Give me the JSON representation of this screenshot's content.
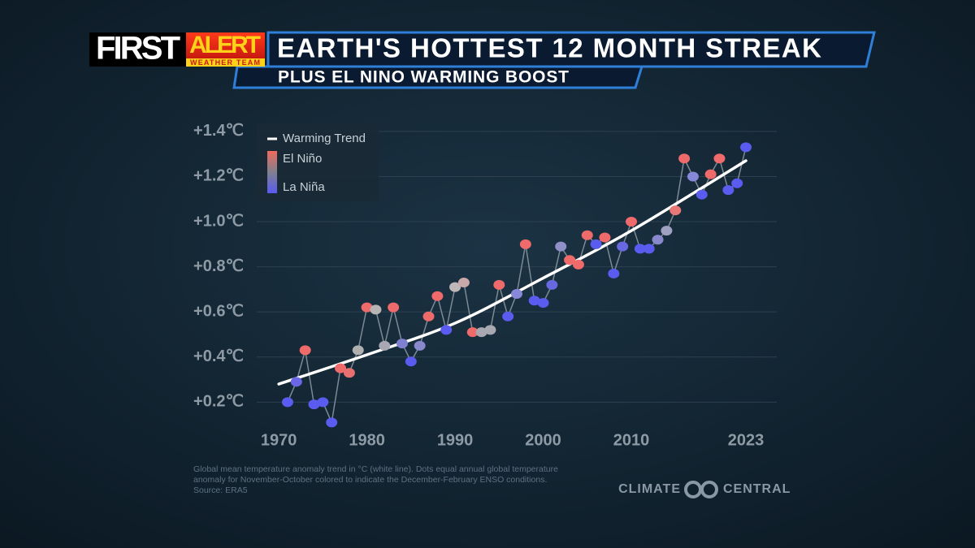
{
  "header": {
    "brand": "FIRST",
    "badge": "ALERT",
    "badge_sub": "WEATHER TEAM",
    "title": "EARTH'S HOTTEST 12 MONTH STREAK",
    "subtitle": "PLUS EL NINO WARMING BOOST"
  },
  "chart_data": {
    "type": "scatter",
    "x": [
      1971,
      1972,
      1973,
      1974,
      1975,
      1976,
      1977,
      1978,
      1979,
      1980,
      1981,
      1982,
      1983,
      1984,
      1985,
      1986,
      1987,
      1988,
      1989,
      1990,
      1991,
      1992,
      1993,
      1994,
      1995,
      1996,
      1997,
      1998,
      1999,
      2000,
      2001,
      2002,
      2003,
      2004,
      2005,
      2006,
      2007,
      2008,
      2009,
      2010,
      2011,
      2012,
      2013,
      2014,
      2015,
      2016,
      2017,
      2018,
      2019,
      2020,
      2021,
      2022,
      2023
    ],
    "series": [
      {
        "values": [
          0.2,
          0.29,
          0.43,
          0.19,
          0.2,
          0.11,
          0.35,
          0.33,
          0.43,
          0.62,
          0.61,
          0.45,
          0.62,
          0.46,
          0.38,
          0.45,
          0.58,
          0.67,
          0.52,
          0.71,
          0.73,
          0.51,
          0.51,
          0.52,
          0.72,
          0.58,
          0.68,
          0.9,
          0.65,
          0.64,
          0.72,
          0.89,
          0.83,
          0.81,
          0.94,
          0.9,
          0.93,
          0.77,
          0.89,
          1.0,
          0.88,
          0.88,
          0.92,
          0.96,
          1.05,
          1.28,
          1.2,
          1.12,
          1.21,
          1.28,
          1.14,
          1.17,
          1.33
        ],
        "colors": [
          "#5a5cf0",
          "#6a66e6",
          "#ef6a6a",
          "#5a5cf0",
          "#5a5cf0",
          "#5a5cf0",
          "#ef6a6a",
          "#e87070",
          "#b0b0b0",
          "#ef6a6a",
          "#b8b4b4",
          "#a8a8b4",
          "#ef6a6a",
          "#8080d0",
          "#5a5cf0",
          "#8888cc",
          "#ef6a6a",
          "#ef6a6a",
          "#5a5cf0",
          "#c0b8b8",
          "#c8a8a8",
          "#ef6a6a",
          "#a8a8b0",
          "#a8a8b0",
          "#ef6a6a",
          "#5a5cf0",
          "#8888d8",
          "#ef6a6a",
          "#5a5cf0",
          "#5a5cf0",
          "#6868e0",
          "#9090c8",
          "#ef6a6a",
          "#ef6a6a",
          "#ef6a6a",
          "#5a5cf0",
          "#ef6a6a",
          "#5a5cf0",
          "#6868e0",
          "#ef6a6a",
          "#5a5cf0",
          "#5a5cf0",
          "#8888cc",
          "#a0a0c0",
          "#e87878",
          "#ef6a6a",
          "#8888d8",
          "#5a5cf0",
          "#ef6a6a",
          "#ef6a6a",
          "#5a5cf0",
          "#5a5cf0",
          "#5a5cf0"
        ],
        "line_color": "#7c8a94"
      },
      {
        "name": "Warming Trend",
        "color": "#ffffff",
        "x": [
          1970,
          1980,
          1990,
          2000,
          2010,
          2023
        ],
        "values": [
          0.28,
          0.41,
          0.55,
          0.75,
          0.96,
          1.27
        ]
      }
    ],
    "legend": {
      "entries": [
        "El Niño",
        "La Niña"
      ],
      "gradient": [
        "#f06a5a",
        "#808090",
        "#5a5af2"
      ]
    },
    "xlim": [
      1967.5,
      2026.5
    ],
    "xticks": [
      1970,
      1980,
      1990,
      2000,
      2010,
      2023
    ],
    "ylim": [
      0.05,
      1.45
    ],
    "yticks": [
      {
        "value": 0.2,
        "label": "+0.2℃"
      },
      {
        "value": 0.4,
        "label": "+0.4℃"
      },
      {
        "value": 0.6,
        "label": "+0.6℃"
      },
      {
        "value": 0.8,
        "label": "+0.8℃"
      },
      {
        "value": 1.0,
        "label": "+1.0℃"
      },
      {
        "value": 1.2,
        "label": "+1.2℃"
      },
      {
        "value": 1.4,
        "label": "+1.4℃"
      }
    ],
    "grid": true,
    "note": [
      "Global mean temperature anomaly trend in °C (white line). Dots equal annual global temperature",
      "anomaly for November-October colored to indicate the December-February ENSO conditions.",
      "Source: ERA5"
    ]
  },
  "logo": {
    "left": "CLIMATE",
    "right": "CENTRAL"
  }
}
